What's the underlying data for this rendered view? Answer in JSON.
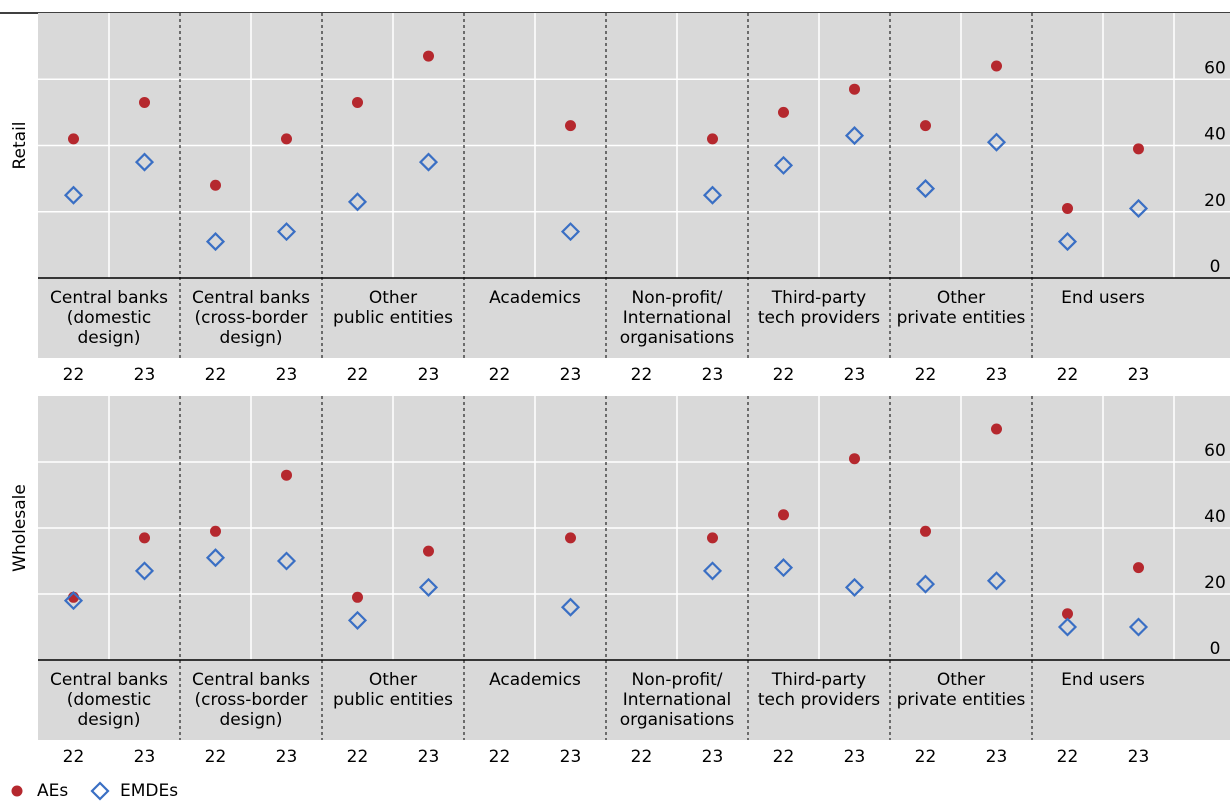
{
  "chart_data": {
    "type": "scatter",
    "panels": [
      "Retail",
      "Wholesale"
    ],
    "groups": [
      [
        "Central banks",
        "(domestic",
        "design)"
      ],
      [
        "Central banks",
        "(cross-border",
        "design)"
      ],
      [
        "Other",
        "public entities"
      ],
      [
        "Academics"
      ],
      [
        "Non-profit/",
        "International",
        "organisations"
      ],
      [
        "Third-party",
        "tech providers"
      ],
      [
        "Other",
        "private entities"
      ],
      [
        "End users"
      ]
    ],
    "categories": [
      "22",
      "23",
      "22",
      "23",
      "22",
      "23",
      "22",
      "23",
      "22",
      "23",
      "22",
      "23",
      "22",
      "23",
      "22",
      "23"
    ],
    "ylim": [
      0,
      80
    ],
    "yticks": [
      0,
      20,
      40,
      60
    ],
    "grid": true,
    "series": [
      {
        "name": "AEs",
        "color": "#b5282e",
        "marker": "dot",
        "values": [
          [
            42,
            53,
            28,
            42,
            53,
            67,
            null,
            46,
            null,
            42,
            50,
            57,
            46,
            64,
            21,
            39
          ],
          [
            19,
            37,
            39,
            56,
            19,
            33,
            null,
            37,
            null,
            37,
            44,
            61,
            39,
            70,
            14,
            28
          ]
        ]
      },
      {
        "name": "EMDEs",
        "color": "#3a6fc4",
        "marker": "diamond",
        "values": [
          [
            25,
            35,
            11,
            14,
            23,
            35,
            null,
            14,
            null,
            25,
            34,
            43,
            27,
            41,
            11,
            21
          ],
          [
            18,
            27,
            31,
            30,
            12,
            22,
            null,
            16,
            null,
            27,
            28,
            22,
            23,
            24,
            10,
            10
          ]
        ]
      }
    ]
  }
}
